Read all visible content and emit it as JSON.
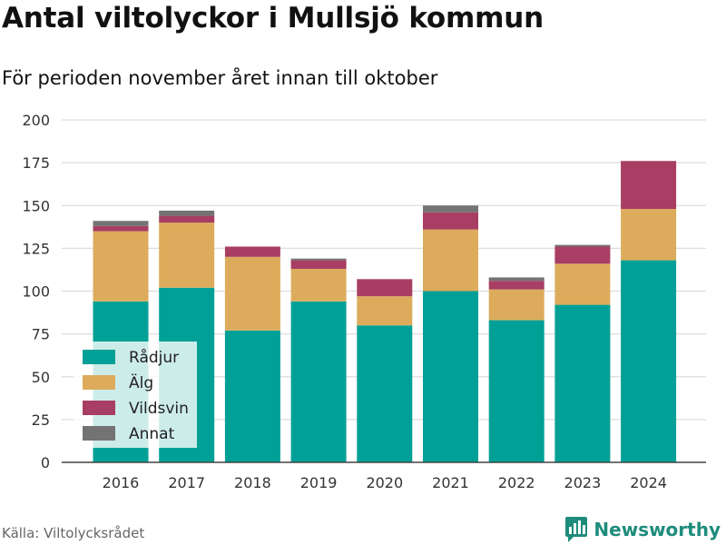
{
  "title": "Antal viltolyckor i Mullsjö kommun",
  "subtitle": "För perioden november året innan till oktober",
  "source": "Källa: Viltolycksrådet",
  "brand": "Newsworthy",
  "colors": {
    "Rådjur": "#00a096",
    "Älg": "#dcac5c",
    "Vildsvin": "#a83e63",
    "Annat": "#737373",
    "grid": "#dddddd",
    "brand": "#1e8c7c"
  },
  "chart_data": {
    "type": "bar",
    "stacked": true,
    "categories": [
      "2016",
      "2017",
      "2018",
      "2019",
      "2020",
      "2021",
      "2022",
      "2023",
      "2024"
    ],
    "series": [
      {
        "name": "Rådjur",
        "values": [
          94,
          102,
          77,
          94,
          80,
          100,
          83,
          92,
          118
        ]
      },
      {
        "name": "Älg",
        "values": [
          41,
          38,
          43,
          19,
          17,
          36,
          18,
          24,
          30
        ]
      },
      {
        "name": "Vildsvin",
        "values": [
          3,
          4,
          6,
          5,
          10,
          10,
          5,
          10,
          28
        ]
      },
      {
        "name": "Annat",
        "values": [
          3,
          3,
          0,
          1,
          0,
          4,
          2,
          1,
          0
        ]
      }
    ],
    "ylim": [
      0,
      200
    ],
    "yticks": [
      0,
      25,
      50,
      75,
      100,
      125,
      150,
      175,
      200
    ],
    "xlabel": "",
    "ylabel": "",
    "grid": true,
    "legend": "bottom-left"
  }
}
